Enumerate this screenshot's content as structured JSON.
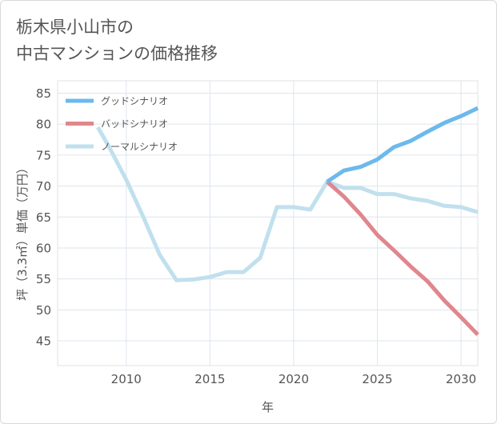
{
  "title_lines": [
    "栃木県小山市の",
    "中古マンションの価格推移"
  ],
  "chart_data": {
    "type": "line",
    "title": "栃木県小山市の中古マンションの価格推移",
    "xlabel": "年",
    "ylabel": "坪（3.3㎡）単価（万円）",
    "xlim": [
      2005.9,
      2031
    ],
    "ylim": [
      41,
      87
    ],
    "xticks": [
      2010,
      2015,
      2020,
      2025,
      2030
    ],
    "yticks": [
      45,
      50,
      55,
      60,
      65,
      70,
      75,
      80,
      85
    ],
    "grid": true,
    "legend_position": "top-left",
    "series": [
      {
        "name": "グッドシナリオ",
        "color": "#6cb9ec",
        "x": [
          2022,
          2023,
          2024,
          2025,
          2026,
          2027,
          2028,
          2029,
          2030,
          2031
        ],
        "y": [
          70.7,
          72.5,
          73.1,
          74.3,
          76.3,
          77.3,
          78.8,
          80.2,
          81.3,
          82.6
        ]
      },
      {
        "name": "バッドシナリオ",
        "color": "#e0868d",
        "x": [
          2022,
          2023,
          2024,
          2025,
          2026,
          2027,
          2028,
          2029,
          2030,
          2031
        ],
        "y": [
          70.7,
          68.3,
          65.4,
          62.1,
          59.6,
          57.0,
          54.6,
          51.5,
          48.8,
          46.0
        ]
      },
      {
        "name": "ノーマルシナリオ",
        "color": "#c1e0ee",
        "x": [
          2008.3,
          2009,
          2010,
          2011,
          2012,
          2013,
          2014,
          2015,
          2016,
          2017,
          2018,
          2019,
          2020,
          2021,
          2022,
          2023,
          2024,
          2025,
          2026,
          2027,
          2028,
          2029,
          2030,
          2031
        ],
        "y": [
          79.5,
          76.2,
          71.0,
          65.1,
          58.9,
          54.8,
          54.9,
          55.3,
          56.1,
          56.1,
          58.4,
          66.6,
          66.6,
          66.2,
          70.7,
          69.7,
          69.7,
          68.7,
          68.7,
          68.0,
          67.6,
          66.8,
          66.6,
          65.8
        ]
      }
    ]
  }
}
